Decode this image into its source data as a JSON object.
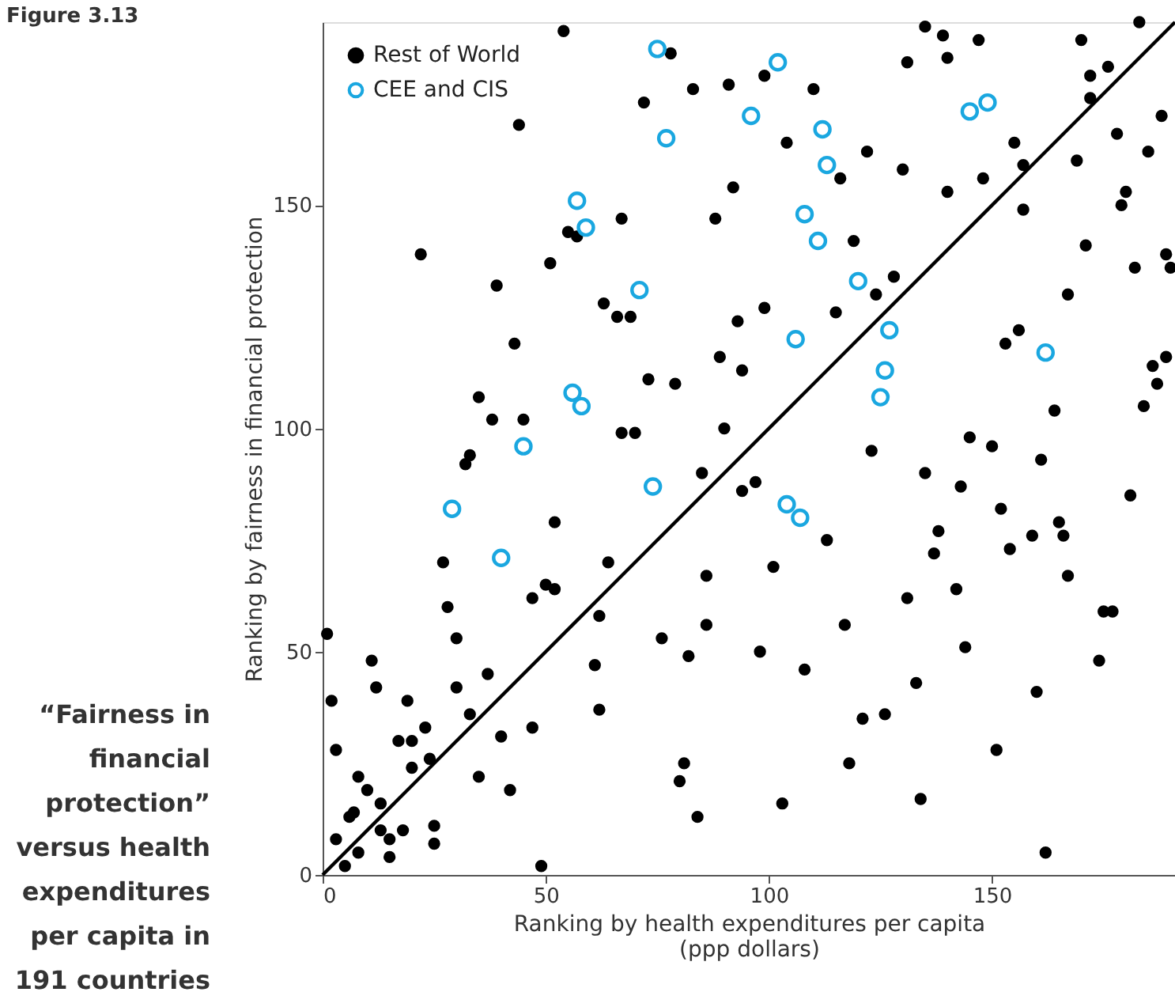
{
  "chart_data": {
    "type": "scatter",
    "xlabel": "Ranking by health expenditures per capita\n(ppp dollars)",
    "ylabel": "Ranking by fairness in financial protection",
    "xlim": [
      0,
      191
    ],
    "ylim": [
      0,
      191
    ],
    "xticks": [
      0,
      50,
      100,
      150
    ],
    "yticks": [
      0,
      50,
      100,
      150
    ],
    "grid": false,
    "legend": "top left",
    "annotations": [
      "Figure 3.13",
      "“Fairness in\nfinancial\nprotection”\nversus health\nexpenditures\nper capita in\n191 countries"
    ],
    "series": [
      {
        "name": "Rest of World",
        "marker": "circle",
        "color": "#000000",
        "x": [
          54,
          44,
          55,
          57,
          22,
          51,
          39,
          63,
          43,
          35,
          38,
          45,
          33,
          32,
          78,
          83,
          91,
          99,
          110,
          72,
          104,
          122,
          116,
          92,
          67,
          88,
          119,
          128,
          124,
          66,
          69,
          99,
          115,
          93,
          89,
          94,
          73,
          79,
          90,
          67,
          70,
          123,
          135,
          139,
          147,
          183,
          170,
          131,
          140,
          172,
          176,
          172,
          188,
          178,
          155,
          185,
          157,
          169,
          130,
          140,
          148,
          180,
          179,
          157,
          171,
          189,
          190,
          182,
          167,
          156,
          153,
          189,
          186,
          187,
          164,
          184,
          145,
          150,
          161,
          52,
          27,
          64,
          28,
          47,
          50,
          52,
          1,
          30,
          62,
          11,
          12,
          61,
          2,
          37,
          30,
          19,
          62,
          33,
          23,
          3,
          17,
          20,
          40,
          47,
          24,
          20,
          8,
          10,
          35,
          42,
          13,
          7,
          6,
          3,
          13,
          15,
          18,
          25,
          25,
          8,
          15,
          5,
          49,
          85,
          97,
          94,
          113,
          86,
          101,
          86,
          76,
          82,
          117,
          98,
          108,
          121,
          126,
          81,
          80,
          118,
          103,
          84,
          135,
          143,
          181,
          152,
          165,
          138,
          159,
          166,
          137,
          154,
          167,
          131,
          142,
          175,
          177,
          144,
          174,
          133,
          160,
          151,
          134,
          162
        ],
        "values": [
          189,
          168,
          144,
          143,
          139,
          137,
          132,
          128,
          119,
          107,
          102,
          102,
          94,
          92,
          184,
          176,
          177,
          179,
          176,
          173,
          164,
          162,
          156,
          154,
          147,
          147,
          142,
          134,
          130,
          125,
          125,
          127,
          126,
          124,
          116,
          113,
          111,
          110,
          100,
          99,
          99,
          95,
          190,
          188,
          187,
          191,
          187,
          182,
          183,
          179,
          181,
          174,
          170,
          166,
          164,
          162,
          159,
          160,
          158,
          153,
          156,
          153,
          150,
          149,
          141,
          139,
          136,
          136,
          130,
          122,
          119,
          116,
          114,
          110,
          104,
          105,
          98,
          96,
          93,
          79,
          70,
          70,
          60,
          62,
          65,
          64,
          54,
          53,
          58,
          48,
          42,
          47,
          39,
          45,
          42,
          39,
          37,
          36,
          33,
          28,
          30,
          30,
          31,
          33,
          26,
          24,
          22,
          19,
          22,
          19,
          16,
          14,
          13,
          8,
          10,
          8,
          10,
          11,
          7,
          5,
          4,
          2,
          2,
          90,
          88,
          86,
          75,
          67,
          69,
          56,
          53,
          49,
          56,
          50,
          46,
          35,
          36,
          25,
          21,
          25,
          16,
          13,
          90,
          87,
          85,
          82,
          79,
          77,
          76,
          76,
          72,
          73,
          67,
          62,
          64,
          59,
          59,
          51,
          48,
          43,
          41,
          28,
          17,
          5
        ]
      },
      {
        "name": "CEE and CIS",
        "marker": "circle",
        "color": "#1aa7e0",
        "x": [
          57,
          59,
          56,
          58,
          45,
          75,
          102,
          96,
          77,
          112,
          113,
          108,
          111,
          120,
          71,
          106,
          127,
          126,
          125,
          145,
          149,
          162,
          29,
          40,
          74,
          104,
          107
        ],
        "values": [
          151,
          145,
          108,
          105,
          96,
          185,
          182,
          170,
          165,
          167,
          159,
          148,
          142,
          133,
          131,
          120,
          122,
          113,
          107,
          171,
          173,
          117,
          82,
          71,
          87,
          83,
          80
        ]
      },
      {
        "type": "line",
        "marker": "none",
        "color": "#000000",
        "x": [
          0,
          191
        ],
        "values": [
          0,
          191
        ]
      }
    ]
  }
}
